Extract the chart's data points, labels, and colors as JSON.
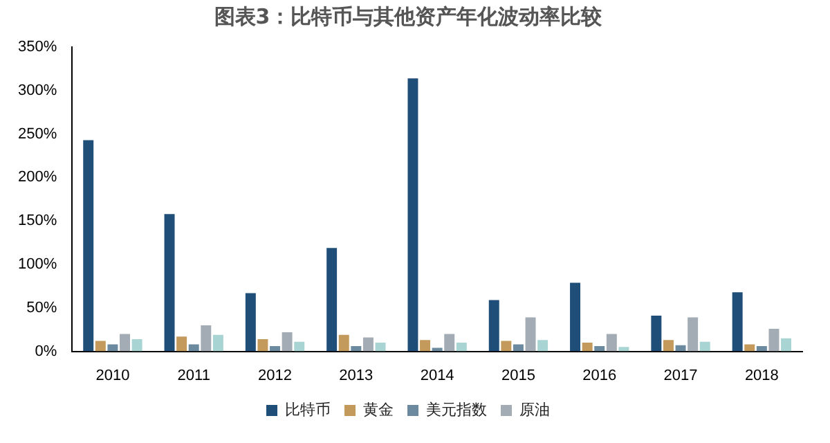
{
  "chart_data": {
    "type": "bar",
    "title": "图表3：比特币与其他资产年化波动率比较",
    "categories": [
      "2010",
      "2011",
      "2012",
      "2013",
      "2014",
      "2015",
      "2016",
      "2017",
      "2018"
    ],
    "series": [
      {
        "name": "比特币",
        "color": "#1f4e79",
        "values": [
          243,
          158,
          67,
          119,
          314,
          59,
          79,
          41,
          68
        ]
      },
      {
        "name": "黄金",
        "color": "#c49a5c",
        "values": [
          12,
          17,
          14,
          19,
          13,
          12,
          10,
          13,
          8
        ]
      },
      {
        "name": "美元指数",
        "color": "#6b8aa0",
        "values": [
          8,
          8,
          6,
          6,
          4,
          8,
          6,
          7,
          6
        ]
      },
      {
        "name": "原油",
        "color": "#a3acb4",
        "values": [
          20,
          30,
          22,
          16,
          20,
          39,
          20,
          39,
          26
        ]
      },
      {
        "color": "#a8d4d4",
        "values": [
          14,
          19,
          11,
          10,
          10,
          13,
          5,
          11,
          15
        ]
      }
    ],
    "ylim": [
      0,
      350
    ],
    "yticks": [
      {
        "value": 0,
        "label": "0%"
      },
      {
        "value": 50,
        "label": "50%"
      },
      {
        "value": 100,
        "label": "100%"
      },
      {
        "value": 150,
        "label": "150%"
      },
      {
        "value": 200,
        "label": "200%"
      },
      {
        "value": 250,
        "label": "250%"
      },
      {
        "value": 300,
        "label": "300%"
      },
      {
        "value": 350,
        "label": "350%"
      }
    ],
    "grid": false,
    "legend": "bottom"
  }
}
